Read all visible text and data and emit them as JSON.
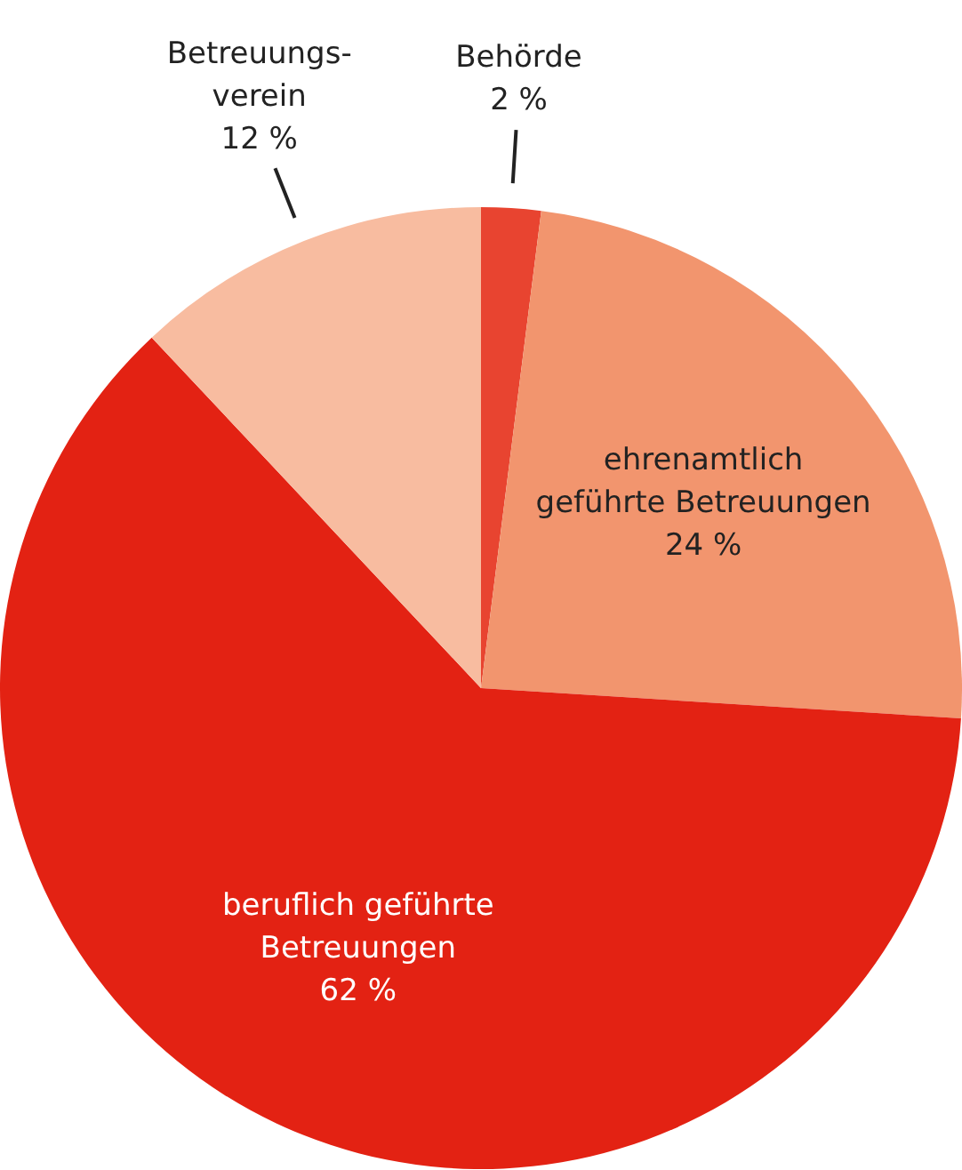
{
  "chart_data": {
    "type": "pie",
    "categories": [
      "Behörde",
      "ehrenamtlich\ngeführte Betreuungen",
      "beruflich geführte\nBetreuungen",
      "Betreuungs-\nverein"
    ],
    "values": [
      2,
      24,
      62,
      12
    ],
    "colors": [
      "#e84430",
      "#f2956e",
      "#e32213",
      "#f8bca0"
    ],
    "value_labels": [
      "2 %",
      "24 %",
      "62 %",
      "12 %"
    ]
  }
}
